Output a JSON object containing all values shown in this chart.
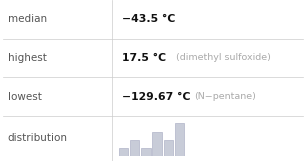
{
  "rows": [
    {
      "label": "median",
      "value": "−43.5 °C",
      "note": ""
    },
    {
      "label": "highest",
      "value": "17.5 °C",
      "note": "(dimethyl sulfoxide)"
    },
    {
      "label": "lowest",
      "value": "−129.67 °C",
      "note": "(N−pentane)"
    },
    {
      "label": "distribution",
      "value": "",
      "note": ""
    }
  ],
  "label_fontsize": 7.5,
  "value_fontsize": 7.8,
  "note_fontsize": 6.8,
  "label_color": "#555555",
  "value_color": "#111111",
  "note_color": "#aaaaaa",
  "bg_color": "#ffffff",
  "line_color": "#cccccc",
  "bar_heights": [
    1,
    2,
    1,
    3,
    2,
    4
  ],
  "bar_color": "#c8ccd8",
  "bar_edge_color": "#b0b4c8",
  "col_divider": 0.365,
  "row_tops": [
    1.0,
    0.76,
    0.52,
    0.28
  ],
  "row_bottoms": [
    0.76,
    0.52,
    0.28,
    0.0
  ]
}
